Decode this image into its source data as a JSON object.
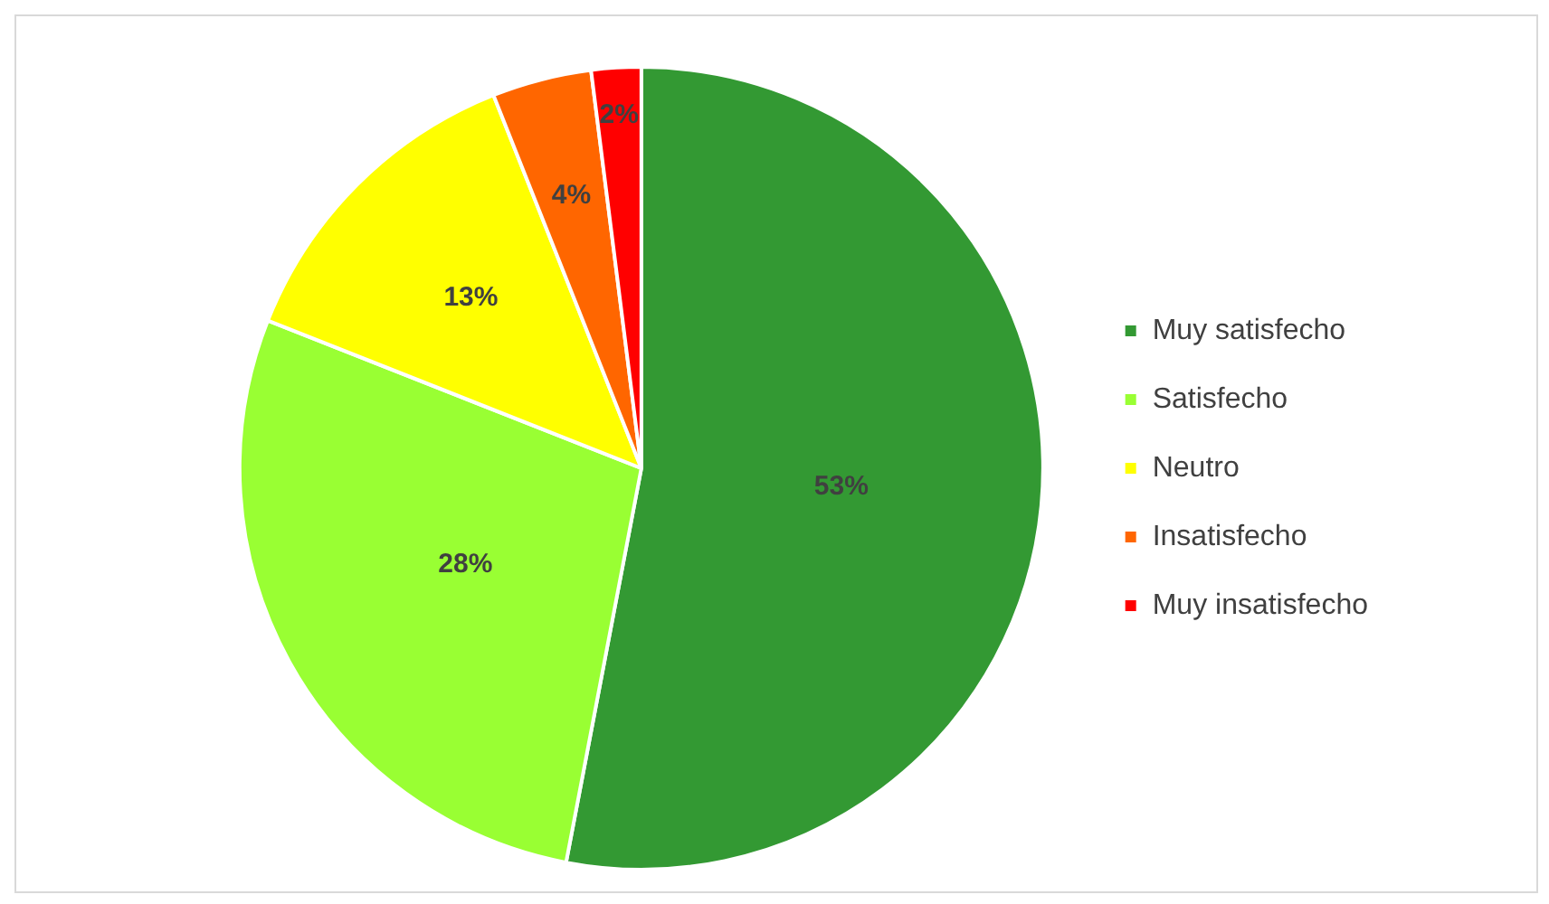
{
  "chart_data": {
    "type": "pie",
    "categories": [
      "Muy satisfecho",
      "Satisfecho",
      "Neutro",
      "Insatisfecho",
      "Muy insatisfecho"
    ],
    "values": [
      53,
      28,
      13,
      4,
      2
    ],
    "value_labels": [
      "53%",
      "28%",
      "13%",
      "4%",
      "2%"
    ],
    "colors": [
      "#339933",
      "#99ff33",
      "#ffff00",
      "#ff6600",
      "#ff0000"
    ],
    "legend": "right"
  }
}
